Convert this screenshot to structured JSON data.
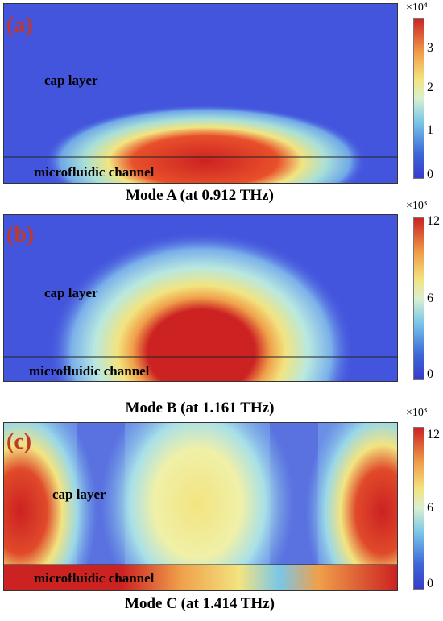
{
  "panels": [
    {
      "label": "(a)",
      "cap_text": "cap layer",
      "channel_text": "microfluidic channel",
      "caption": "Mode A (at 0.912 THz)",
      "colorbar": {
        "multiplier": "×10⁴",
        "ticks": [
          "3",
          "2",
          "1",
          "0"
        ]
      }
    },
    {
      "label": "(b)",
      "cap_text": "cap layer",
      "channel_text": "microfluidic channel",
      "caption": "Mode B (at 1.161 THz)",
      "colorbar": {
        "multiplier": "×10³",
        "ticks": [
          "12",
          "6",
          "0"
        ]
      }
    },
    {
      "label": "(c)",
      "cap_text": "cap layer",
      "channel_text": "microfluidic channel",
      "caption": "Mode C (at 1.414 THz)",
      "colorbar": {
        "multiplier": "×10³",
        "ticks": [
          "12",
          "6",
          "0"
        ]
      }
    }
  ],
  "colors": {
    "background_field": "#4455dd",
    "hot": "#cc2222",
    "warm": "#f0a04a",
    "mid": "#f2e480",
    "cool": "#7ac6e8",
    "label_red": "#c0392b"
  }
}
